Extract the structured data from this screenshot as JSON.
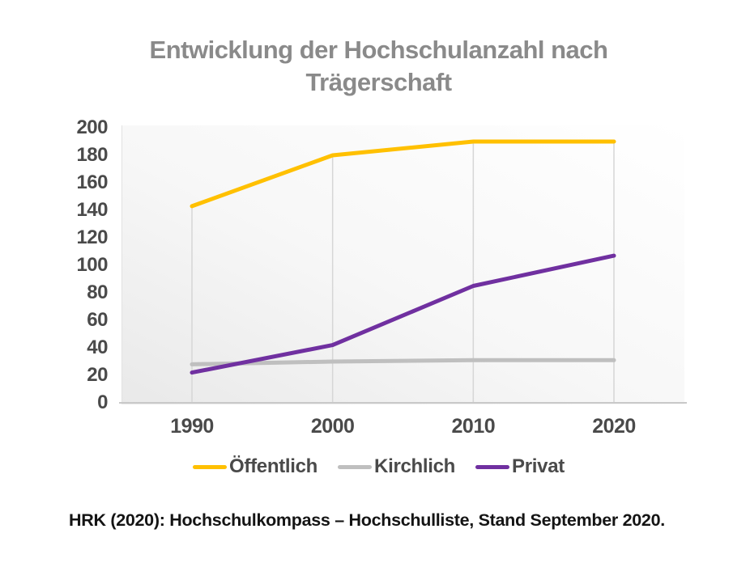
{
  "title": "Entwicklung der Hochschulanzahl nach Trägerschaft",
  "source": "HRK (2020): Hochschulkompass – Hochschulliste, Stand September 2020.",
  "chart_data": {
    "type": "line",
    "title": "Entwicklung der Hochschulanzahl nach Trägerschaft",
    "categories": [
      "1990",
      "2000",
      "2010",
      "2020"
    ],
    "series": [
      {
        "name": "Öffentlich",
        "color": "#FFC000",
        "values": [
          143,
          180,
          190,
          190
        ]
      },
      {
        "name": "Kirchlich",
        "color": "#BFBFBF",
        "values": [
          28,
          30,
          31,
          31
        ]
      },
      {
        "name": "Privat",
        "color": "#7030A0",
        "values": [
          22,
          42,
          85,
          107
        ]
      }
    ],
    "xlabel": "",
    "ylabel": "",
    "ylim": [
      0,
      200
    ],
    "yticks": [
      0,
      20,
      40,
      60,
      80,
      100,
      120,
      140,
      160,
      180,
      200
    ],
    "grid": "vertical-drop-lines-only",
    "legend_position": "bottom"
  },
  "colors": {
    "public_line": "#FFC000",
    "church_line": "#BFBFBF",
    "private_line": "#7030A0",
    "axis_text": "#4a4a4a",
    "title_text": "#8a8a8a",
    "source_text": "#141414",
    "gridline": "#d6d6d6",
    "baseline": "#c9c9c9"
  }
}
